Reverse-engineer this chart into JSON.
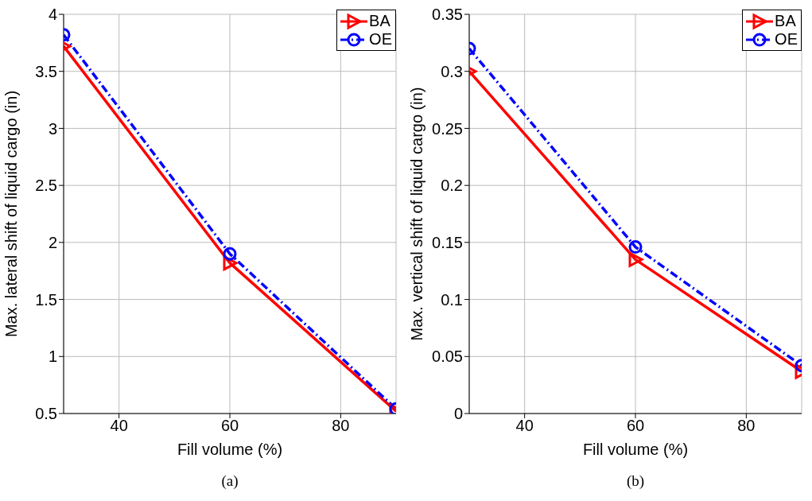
{
  "chart_data": [
    {
      "type": "line",
      "xlabel": "Fill volume (%)",
      "ylabel": "Max. lateral shift of liquid cargo (in)",
      "x": [
        30,
        60,
        90
      ],
      "xlim": [
        30,
        90
      ],
      "xticks": [
        40,
        60,
        80
      ],
      "ylim": [
        0.5,
        4
      ],
      "yticks": [
        0.5,
        1,
        1.5,
        2,
        2.5,
        3,
        3.5,
        4
      ],
      "grid": true,
      "legend": "top right",
      "annotations": [
        "(a)"
      ],
      "series": [
        {
          "name": "BA",
          "color": "#ff0000",
          "values": [
            3.72,
            1.82,
            0.52
          ],
          "marker": "triangle",
          "line_style": "solid"
        },
        {
          "name": "OE",
          "color": "#0000ff",
          "values": [
            3.82,
            1.9,
            0.54
          ],
          "marker": "circle",
          "line_style": "dashdot"
        }
      ]
    },
    {
      "type": "line",
      "xlabel": "Fill volume (%)",
      "ylabel": "Max. vertical shift of liquid cargo (in)",
      "x": [
        30,
        60,
        90
      ],
      "xlim": [
        30,
        90
      ],
      "xticks": [
        40,
        60,
        80
      ],
      "ylim": [
        0,
        0.35
      ],
      "yticks": [
        0,
        0.05,
        0.1,
        0.15,
        0.2,
        0.25,
        0.3,
        0.35
      ],
      "grid": true,
      "legend": "top right",
      "annotations": [
        "(b)"
      ],
      "series": [
        {
          "name": "BA",
          "color": "#ff0000",
          "values": [
            0.3,
            0.135,
            0.037
          ],
          "marker": "triangle",
          "line_style": "solid"
        },
        {
          "name": "OE",
          "color": "#0000ff",
          "values": [
            0.32,
            0.146,
            0.042
          ],
          "marker": "circle",
          "line_style": "dashdot"
        }
      ]
    }
  ]
}
